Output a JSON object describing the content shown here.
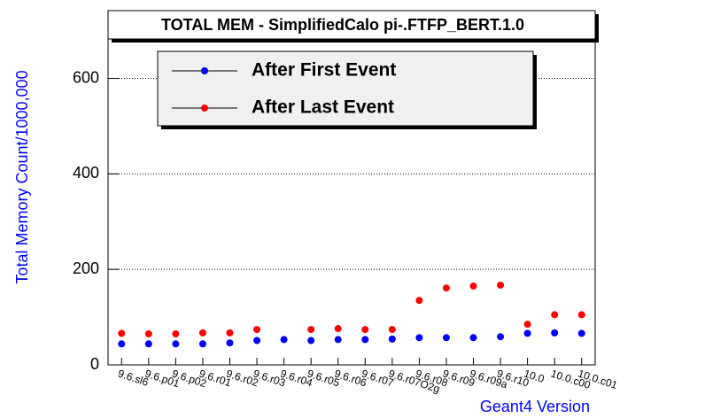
{
  "chart_data": {
    "type": "scatter",
    "title": "TOTAL MEM - SimplifiedCalo pi-.FTFP_BERT.1.0",
    "y_label": "Total Memory Count/1000,000",
    "x_label": "Geant4 Version",
    "categories": [
      "9.6.sl6",
      "9.6.p01",
      "9.6.p02",
      "9.6.r01",
      "9.6.r02",
      "9.6.r03",
      "9.6.r04",
      "9.6.r05",
      "9.6.r06",
      "9.6.r07",
      "9.6.r07O2g",
      "9.6.r08",
      "9.6.r09",
      "9.6.r09a",
      "9.6.r10",
      "10.0",
      "10.0.c00",
      "10.0.c01"
    ],
    "series": [
      {
        "name": "After First Event",
        "color": "#0000ff",
        "values": [
          44,
          44,
          44,
          44,
          46,
          51,
          53,
          51,
          53,
          53,
          54,
          57,
          57,
          57,
          59,
          66,
          67,
          66
        ]
      },
      {
        "name": "After Last Event",
        "color": "#ff0000",
        "values": [
          66,
          65,
          65,
          67,
          67,
          74,
          null,
          74,
          76,
          74,
          74,
          135,
          161,
          165,
          167,
          85,
          105,
          105
        ]
      }
    ],
    "ylim": [
      0,
      690
    ],
    "yticks": [
      0,
      200,
      400,
      600
    ],
    "grid": true,
    "legend": "top"
  }
}
